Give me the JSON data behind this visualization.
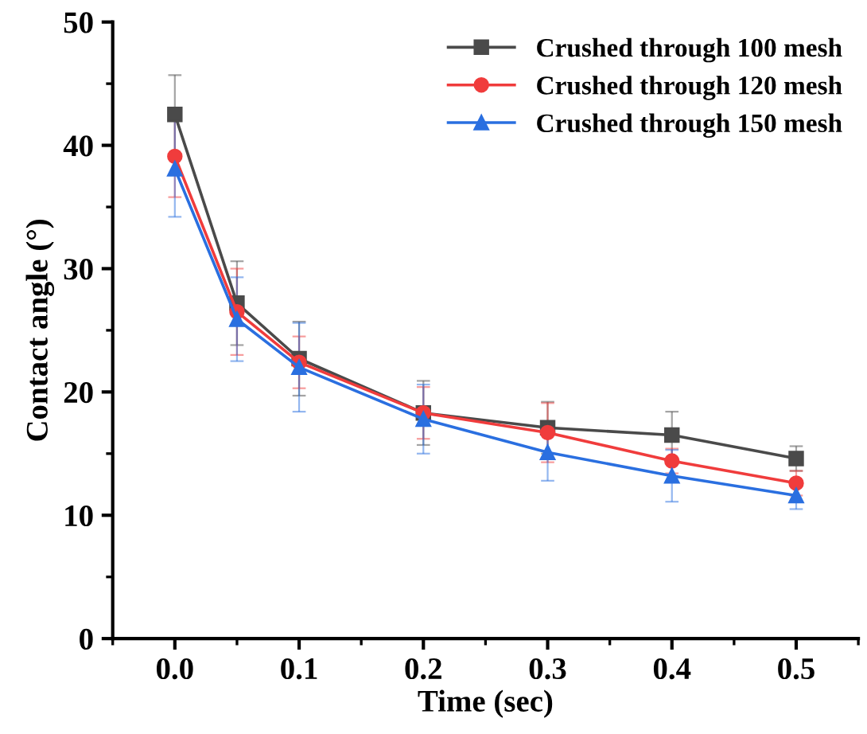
{
  "chart_data": {
    "type": "line",
    "xlabel": "Time (sec)",
    "ylabel": "Contact angle (°)",
    "x": [
      0.0,
      0.05,
      0.1,
      0.2,
      0.3,
      0.4,
      0.5
    ],
    "xlim": [
      -0.05,
      0.55
    ],
    "xticks": [
      {
        "value": 0.0,
        "label": "0.0"
      },
      {
        "value": 0.1,
        "label": "0.1"
      },
      {
        "value": 0.2,
        "label": "0.2"
      },
      {
        "value": 0.3,
        "label": "0.3"
      },
      {
        "value": 0.4,
        "label": "0.4"
      },
      {
        "value": 0.5,
        "label": "0.5"
      }
    ],
    "ylim": [
      0,
      50
    ],
    "yticks": [
      0,
      10,
      20,
      30,
      40,
      50
    ],
    "grid": false,
    "legend": "top right",
    "line_style": "solid",
    "series": [
      {
        "name": "Crushed through 100 mesh",
        "color": "#4a4a4a",
        "marker": "square",
        "values": [
          42.5,
          27.2,
          22.7,
          18.3,
          17.1,
          16.5,
          14.6
        ],
        "errors": [
          3.2,
          3.4,
          3.0,
          2.6,
          2.1,
          1.9,
          1.0
        ]
      },
      {
        "name": "Crushed through 120 mesh",
        "color": "#f03c3c",
        "marker": "circle",
        "values": [
          39.1,
          26.5,
          22.4,
          18.3,
          16.7,
          14.4,
          12.6
        ],
        "errors": [
          3.3,
          3.5,
          2.1,
          2.1,
          2.4,
          1.0,
          1.0
        ]
      },
      {
        "name": "Crushed through 150 mesh",
        "color": "#2a6fe0",
        "marker": "triangle",
        "values": [
          38.1,
          25.9,
          22.0,
          17.8,
          15.1,
          13.2,
          11.6
        ],
        "errors": [
          3.9,
          3.4,
          3.6,
          2.8,
          2.3,
          2.1,
          1.1
        ]
      }
    ]
  }
}
